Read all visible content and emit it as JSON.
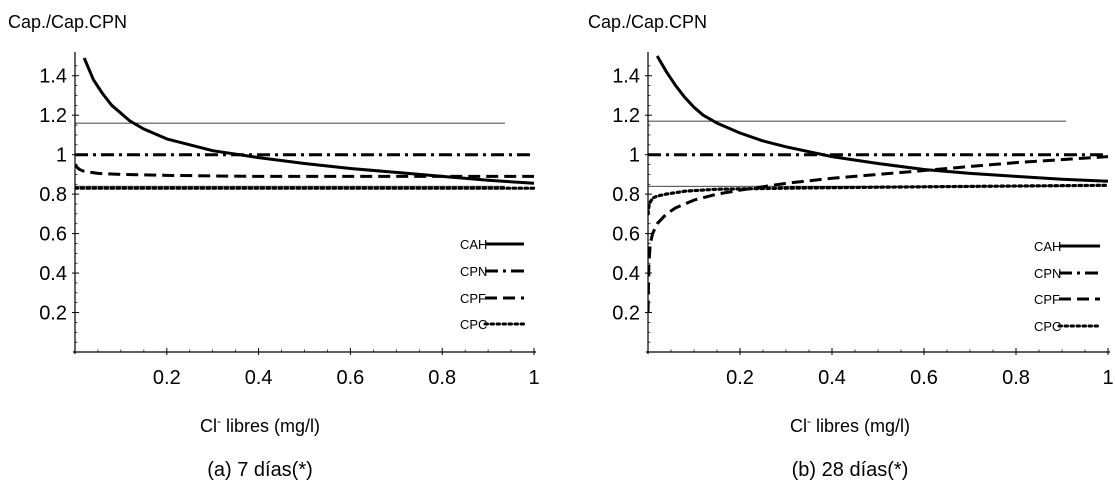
{
  "chart_data": [
    {
      "type": "line",
      "ylabel": "Cap./Cap.CPN",
      "xlabel_main": "Cl",
      "xlabel_sup": "-",
      "xlabel_rest": " libres (mg/l)",
      "caption": "(a) 7 días(*)",
      "xlim": [
        0,
        1
      ],
      "ylim": [
        0,
        1.5
      ],
      "x_ticks": [
        "0.2",
        "0.4",
        "0.6",
        "0.8",
        "1"
      ],
      "y_ticks": [
        "0.2",
        "0.4",
        "0.6",
        "0.8",
        "1",
        "1.2",
        "1.4"
      ],
      "reference_lines": [
        1.16,
        0.84
      ],
      "series": [
        {
          "name": "CAH",
          "style": "solid",
          "x": [
            0.02,
            0.04,
            0.06,
            0.08,
            0.1,
            0.12,
            0.15,
            0.2,
            0.25,
            0.3,
            0.4,
            0.5,
            0.6,
            0.7,
            0.8,
            0.9,
            1.0
          ],
          "y": [
            1.49,
            1.38,
            1.31,
            1.25,
            1.21,
            1.17,
            1.13,
            1.08,
            1.05,
            1.02,
            0.985,
            0.955,
            0.93,
            0.91,
            0.89,
            0.87,
            0.855
          ]
        },
        {
          "name": "CPN",
          "style": "dashdot",
          "x": [
            0.0,
            0.25,
            0.5,
            0.75,
            1.0
          ],
          "y": [
            1.0,
            1.0,
            1.0,
            1.0,
            1.0
          ]
        },
        {
          "name": "CPF",
          "style": "dashed",
          "x": [
            0.0,
            0.005,
            0.01,
            0.02,
            0.05,
            0.1,
            0.2,
            0.4,
            0.6,
            0.8,
            1.0
          ],
          "y": [
            0.95,
            0.935,
            0.925,
            0.915,
            0.905,
            0.9,
            0.895,
            0.89,
            0.89,
            0.89,
            0.89
          ]
        },
        {
          "name": "CPC",
          "style": "dotted",
          "x": [
            0.0,
            0.25,
            0.5,
            0.75,
            1.0
          ],
          "y": [
            0.83,
            0.83,
            0.83,
            0.83,
            0.83
          ]
        }
      ]
    },
    {
      "type": "line",
      "ylabel": "Cap./Cap.CPN",
      "xlabel_main": "Cl",
      "xlabel_sup": "-",
      "xlabel_rest": " libres (mg/l)",
      "caption": "(b) 28 días(*)",
      "xlim": [
        0,
        1
      ],
      "ylim": [
        0,
        1.5
      ],
      "x_ticks": [
        "0.2",
        "0.4",
        "0.6",
        "0.8",
        "1"
      ],
      "y_ticks": [
        "0.2",
        "0.4",
        "0.6",
        "0.8",
        "1",
        "1.2",
        "1.4"
      ],
      "reference_lines": [
        1.17,
        0.84
      ],
      "series": [
        {
          "name": "CAH",
          "style": "solid",
          "x": [
            0.02,
            0.04,
            0.06,
            0.08,
            0.1,
            0.12,
            0.15,
            0.2,
            0.25,
            0.3,
            0.4,
            0.5,
            0.6,
            0.7,
            0.8,
            0.9,
            1.0
          ],
          "y": [
            1.5,
            1.42,
            1.35,
            1.29,
            1.24,
            1.2,
            1.16,
            1.11,
            1.07,
            1.04,
            0.99,
            0.955,
            0.925,
            0.905,
            0.89,
            0.875,
            0.865
          ]
        },
        {
          "name": "CPN",
          "style": "dashdot",
          "x": [
            0.0,
            0.25,
            0.5,
            0.75,
            1.0
          ],
          "y": [
            1.0,
            1.0,
            1.0,
            1.0,
            1.0
          ]
        },
        {
          "name": "CPF",
          "style": "dashed",
          "x": [
            0.0,
            0.002,
            0.005,
            0.01,
            0.02,
            0.04,
            0.06,
            0.1,
            0.15,
            0.2,
            0.3,
            0.4,
            0.5,
            0.6,
            0.7,
            0.8,
            0.9,
            1.0
          ],
          "y": [
            0.2,
            0.45,
            0.55,
            0.6,
            0.65,
            0.7,
            0.73,
            0.77,
            0.8,
            0.82,
            0.855,
            0.88,
            0.9,
            0.92,
            0.94,
            0.96,
            0.975,
            0.99
          ]
        },
        {
          "name": "CPC",
          "style": "dotted",
          "x": [
            0.0,
            0.002,
            0.005,
            0.01,
            0.02,
            0.04,
            0.08,
            0.15,
            0.3,
            0.5,
            0.75,
            1.0
          ],
          "y": [
            0.7,
            0.74,
            0.76,
            0.78,
            0.79,
            0.8,
            0.815,
            0.825,
            0.83,
            0.835,
            0.84,
            0.845
          ]
        }
      ]
    }
  ]
}
